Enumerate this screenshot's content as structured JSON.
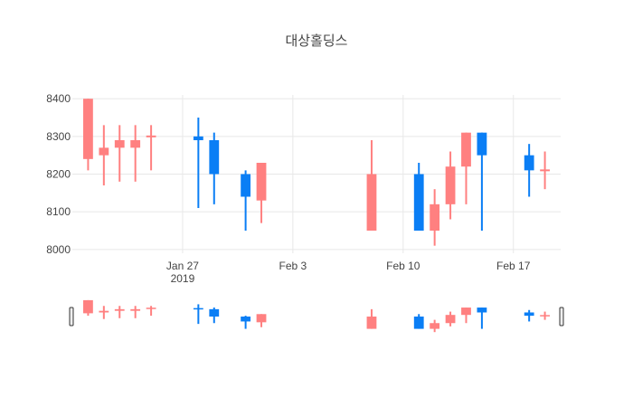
{
  "chart_data": {
    "type": "candlestick",
    "title": "대상홀딩스",
    "xlabel": "",
    "ylabel": "",
    "ylim": [
      7990,
      8410
    ],
    "xlim": [
      "2019-01-20",
      "2019-02-20"
    ],
    "y_ticks": [
      "8000",
      "8100",
      "8200",
      "8300",
      "8400"
    ],
    "x_ticks": [
      {
        "date": "2019-01-27",
        "label": "Jan 27",
        "sublabel": "2019"
      },
      {
        "date": "2019-02-03",
        "label": "Feb 3",
        "sublabel": ""
      },
      {
        "date": "2019-02-10",
        "label": "Feb 10",
        "sublabel": ""
      },
      {
        "date": "2019-02-17",
        "label": "Feb 17",
        "sublabel": ""
      }
    ],
    "grid": true,
    "rangeslider": true,
    "increasing_color": "#ff8080",
    "decreasing_color": "#0a7ef5",
    "candles": [
      {
        "date": "2019-01-21",
        "open": 8240,
        "high": 8400,
        "low": 8210,
        "close": 8400
      },
      {
        "date": "2019-01-22",
        "open": 8250,
        "high": 8330,
        "low": 8170,
        "close": 8270
      },
      {
        "date": "2019-01-23",
        "open": 8270,
        "high": 8330,
        "low": 8180,
        "close": 8290
      },
      {
        "date": "2019-01-24",
        "open": 8270,
        "high": 8330,
        "low": 8180,
        "close": 8290
      },
      {
        "date": "2019-01-25",
        "open": 8300,
        "high": 8330,
        "low": 8210,
        "close": 8300
      },
      {
        "date": "2019-01-28",
        "open": 8300,
        "high": 8350,
        "low": 8110,
        "close": 8290
      },
      {
        "date": "2019-01-29",
        "open": 8290,
        "high": 8310,
        "low": 8120,
        "close": 8200
      },
      {
        "date": "2019-01-31",
        "open": 8200,
        "high": 8210,
        "low": 8050,
        "close": 8140
      },
      {
        "date": "2019-02-01",
        "open": 8130,
        "high": 8230,
        "low": 8070,
        "close": 8230
      },
      {
        "date": "2019-02-08",
        "open": 8050,
        "high": 8290,
        "low": 8050,
        "close": 8200
      },
      {
        "date": "2019-02-11",
        "open": 8200,
        "high": 8230,
        "low": 8050,
        "close": 8050
      },
      {
        "date": "2019-02-12",
        "open": 8050,
        "high": 8160,
        "low": 8010,
        "close": 8120
      },
      {
        "date": "2019-02-13",
        "open": 8120,
        "high": 8260,
        "low": 8080,
        "close": 8220
      },
      {
        "date": "2019-02-14",
        "open": 8220,
        "high": 8310,
        "low": 8120,
        "close": 8310
      },
      {
        "date": "2019-02-15",
        "open": 8310,
        "high": 8310,
        "low": 8050,
        "close": 8250
      },
      {
        "date": "2019-02-18",
        "open": 8250,
        "high": 8280,
        "low": 8140,
        "close": 8210
      },
      {
        "date": "2019-02-19",
        "open": 8210,
        "high": 8260,
        "low": 8160,
        "close": 8210
      }
    ]
  }
}
